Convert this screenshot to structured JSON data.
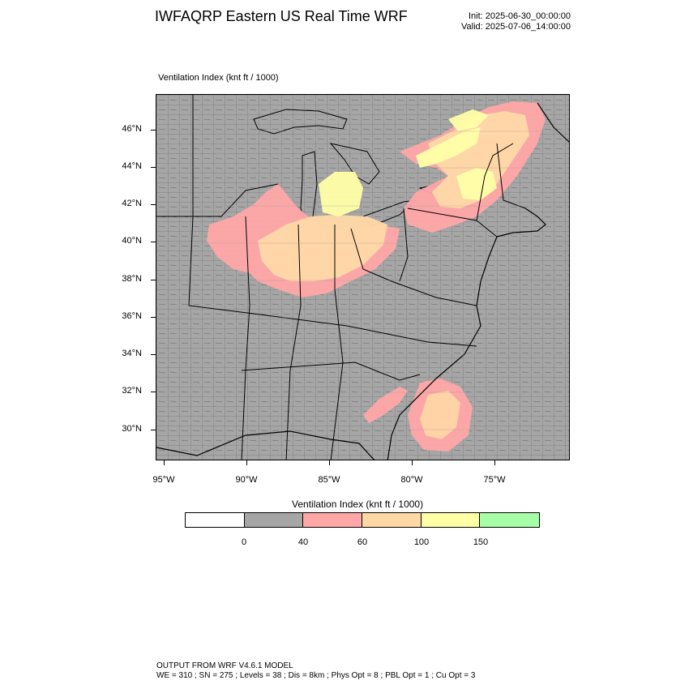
{
  "header": {
    "title": "IWFAQRP Eastern US Real Time WRF",
    "init": "Init: 2025-06-30_00:00:00",
    "valid": "Valid: 2025-07-06_14:00:00"
  },
  "map": {
    "field_label": "Ventilation Index   (knt ft / 1000)",
    "lat_labels": [
      "46°N",
      "44°N",
      "42°N",
      "40°N",
      "38°N",
      "36°N",
      "34°N",
      "32°N",
      "30°N"
    ],
    "lon_labels": [
      "95°W",
      "90°W",
      "85°W",
      "80°W",
      "75°W"
    ],
    "colors": {
      "land_gray": "#a6a6a6",
      "pink": "#ffa6a6",
      "orange": "#ffd8a6",
      "yellow": "#ffffa6",
      "green": "#a6ffa6",
      "white": "#ffffff",
      "boundary": "#000000"
    }
  },
  "legend": {
    "title": "Ventilation Index  (knt ft / 1000)",
    "colors": [
      "#ffffff",
      "#a6a6a6",
      "#ffa6a6",
      "#ffd8a6",
      "#ffffa6",
      "#a6ffa6"
    ],
    "ticks": [
      "0",
      "40",
      "60",
      "100",
      "150"
    ]
  },
  "footer": {
    "line1": "OUTPUT FROM WRF V4.6.1 MODEL",
    "line2": "WE = 310 ; SN = 275 ; Levels = 38 ; Dis = 8km ; Phys Opt = 8 ; PBL Opt = 1 ; Cu Opt = 3"
  }
}
